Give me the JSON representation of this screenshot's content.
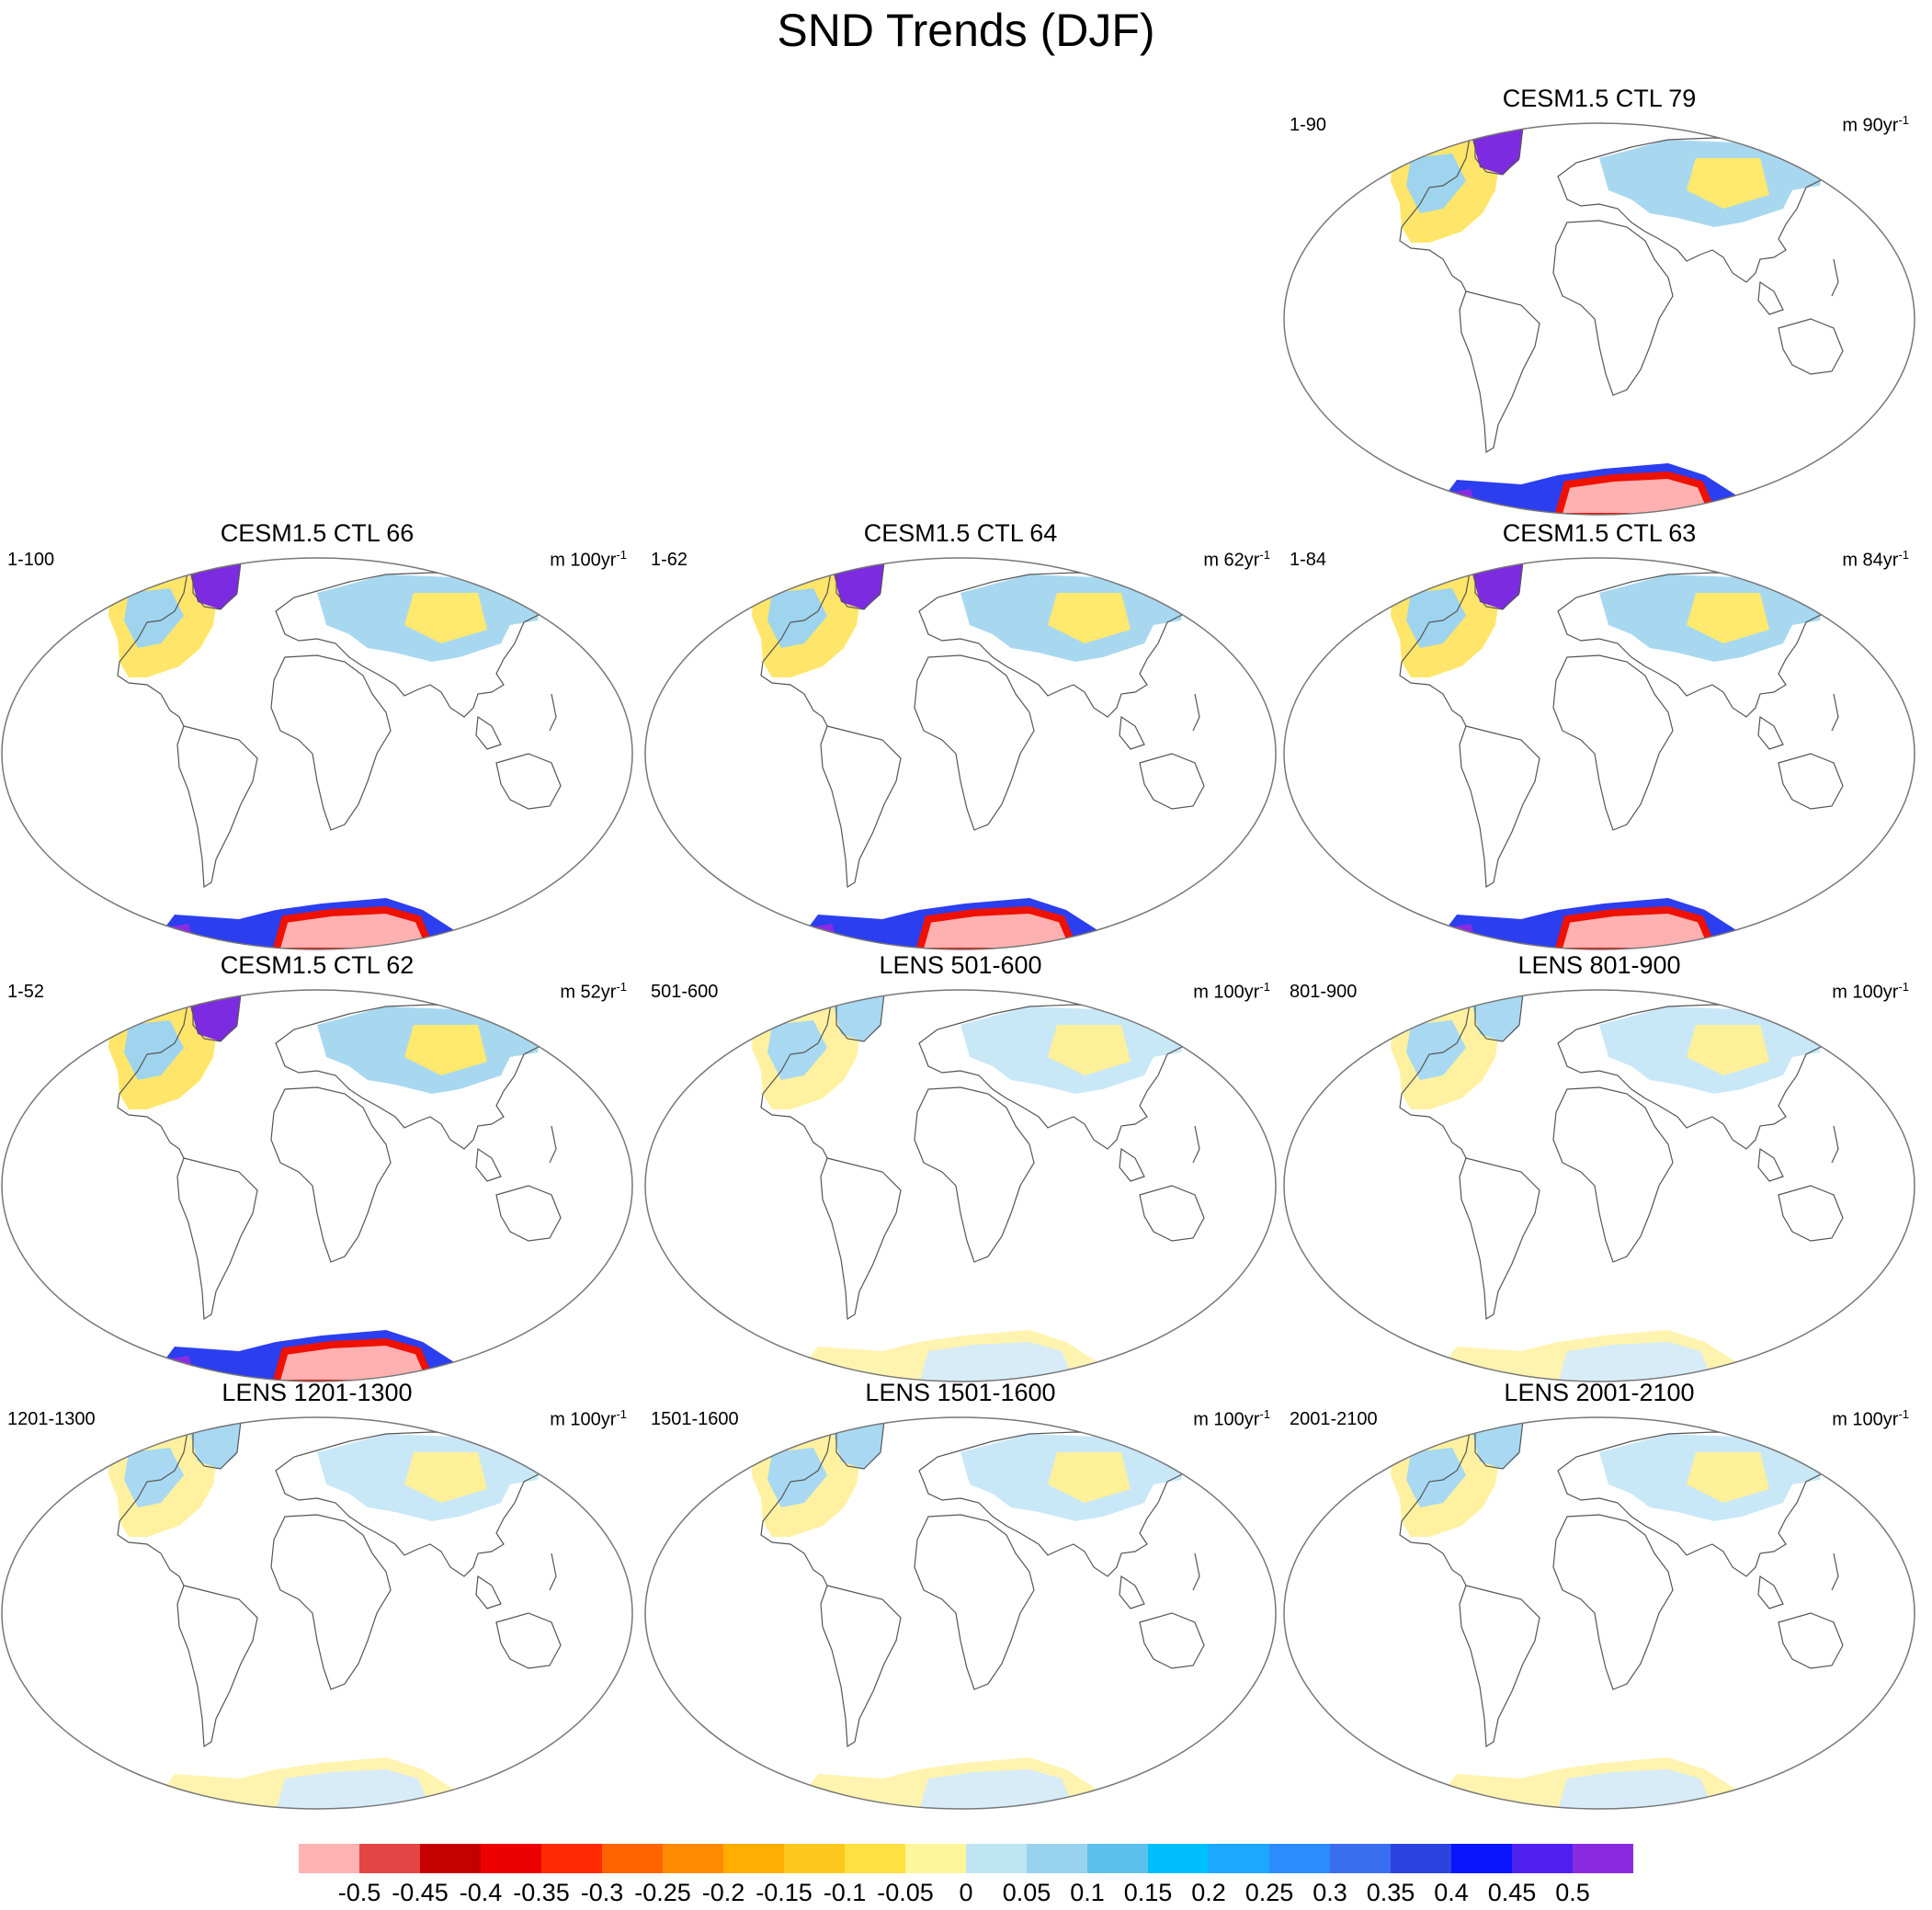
{
  "title": "SND Trends (DJF)",
  "panels": [
    {
      "title": "CESM1.5 CTL 79",
      "left": "1-90",
      "units": "m 90yr",
      "exp": "-1",
      "pattern": "ctl-strong"
    },
    {
      "title": "CESM1.5 CTL 66",
      "left": "1-100",
      "units": "m 100yr",
      "exp": "-1",
      "pattern": "ctl-strong"
    },
    {
      "title": "CESM1.5 CTL 64",
      "left": "1-62",
      "units": "m 62yr",
      "exp": "-1",
      "pattern": "ctl-strong"
    },
    {
      "title": "CESM1.5 CTL 63",
      "left": "1-84",
      "units": "m 84yr",
      "exp": "-1",
      "pattern": "ctl-strong"
    },
    {
      "title": "CESM1.5 CTL 62",
      "left": "1-52",
      "units": "m 52yr",
      "exp": "-1",
      "pattern": "ctl-strong"
    },
    {
      "title": "LENS 501-600",
      "left": "501-600",
      "units": "m 100yr",
      "exp": "-1",
      "pattern": "lens"
    },
    {
      "title": "LENS 801-900",
      "left": "801-900",
      "units": "m 100yr",
      "exp": "-1",
      "pattern": "lens"
    },
    {
      "title": "LENS 1201-1300",
      "left": "1201-1300",
      "units": "m 100yr",
      "exp": "-1",
      "pattern": "lens"
    },
    {
      "title": "LENS 1501-1600",
      "left": "1501-1600",
      "units": "m 100yr",
      "exp": "-1",
      "pattern": "lens"
    },
    {
      "title": "LENS 2001-2100",
      "left": "2001-2100",
      "units": "m 100yr",
      "exp": "-1",
      "pattern": "lens"
    }
  ],
  "colorbar": {
    "colors": [
      "#ffb3b3",
      "#e34545",
      "#c40000",
      "#ee0000",
      "#ff2a00",
      "#ff6400",
      "#ff8c00",
      "#ffad00",
      "#ffc820",
      "#ffe040",
      "#fff59a",
      "#bfe5f5",
      "#98d2ee",
      "#5cc0ee",
      "#00bfff",
      "#1ea7ff",
      "#2a8cff",
      "#3a6ef0",
      "#2b44e0",
      "#0a14ff",
      "#4f20f0",
      "#8a2be2"
    ],
    "labels": [
      "-0.5",
      "-0.45",
      "-0.4",
      "-0.35",
      "-0.3",
      "-0.25",
      "-0.2",
      "-0.15",
      "-0.1",
      "-0.05",
      "0",
      "0.05",
      "0.1",
      "0.15",
      "0.2",
      "0.25",
      "0.3",
      "0.35",
      "0.4",
      "0.45",
      "0.5"
    ]
  }
}
